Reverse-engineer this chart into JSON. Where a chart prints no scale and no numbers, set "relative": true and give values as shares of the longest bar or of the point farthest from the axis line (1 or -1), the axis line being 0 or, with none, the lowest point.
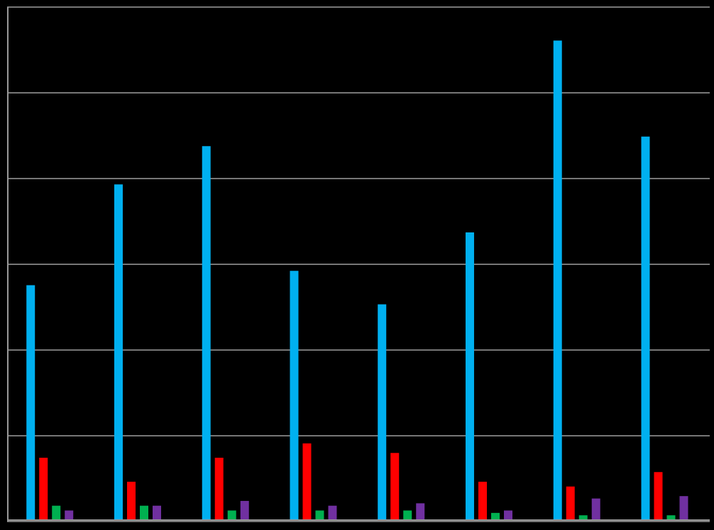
{
  "chart_data": {
    "type": "bar",
    "relative": true,
    "grid": "y",
    "categories": [
      null,
      null,
      null,
      null,
      null,
      null,
      null,
      null
    ],
    "series": [
      {
        "color": "#00b0f0",
        "values": [
          0.49,
          0.7,
          0.78,
          0.52,
          0.45,
          0.6,
          1,
          0.8
        ]
      },
      {
        "color": "#ff0000",
        "values": [
          0.13,
          0.08,
          0.13,
          0.16,
          0.14,
          0.08,
          0.07,
          0.1
        ]
      },
      {
        "color": "#00b050",
        "values": [
          0.03,
          0.03,
          0.02,
          0.02,
          0.02,
          0.015,
          0.01,
          0.01
        ]
      },
      {
        "color": "#7030a0",
        "values": [
          0.02,
          0.03,
          0.04,
          0.03,
          0.035,
          0.02,
          0.045,
          0.05
        ]
      }
    ]
  }
}
